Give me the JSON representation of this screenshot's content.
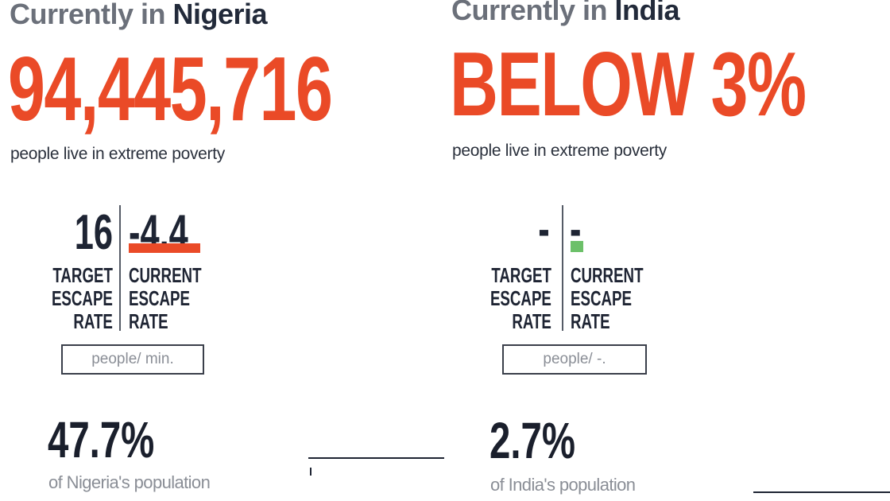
{
  "nigeria": {
    "heading_prefix": "Currently in ",
    "country": "Nigeria",
    "big_figure": "94,445,716",
    "subtitle": "people live in extreme poverty",
    "target_value": "16",
    "current_value": "-4.4",
    "target_label": "TARGET\nESCAPE\nRATE",
    "current_label": "CURRENT\nESCAPE\nRATE",
    "unit": "people/ min.",
    "percent": "47.7%",
    "percent_caption": "of Nigeria's population",
    "indicator_color": "#ea4a27"
  },
  "india": {
    "heading_prefix": "Currently in ",
    "country": "India",
    "big_figure": "BELOW 3%",
    "subtitle": "people live in extreme poverty",
    "target_value": "-",
    "current_value": "-",
    "target_label": "TARGET\nESCAPE\nRATE",
    "current_label": "CURRENT\nESCAPE\nRATE",
    "unit": "people/ -.",
    "percent": "2.7%",
    "percent_caption": "of India's population",
    "indicator_color": "#6cc069"
  },
  "colors": {
    "accent": "#ea4a27",
    "text_dark": "#1e2433",
    "text_muted": "#8a8e96",
    "positive": "#6cc069"
  }
}
